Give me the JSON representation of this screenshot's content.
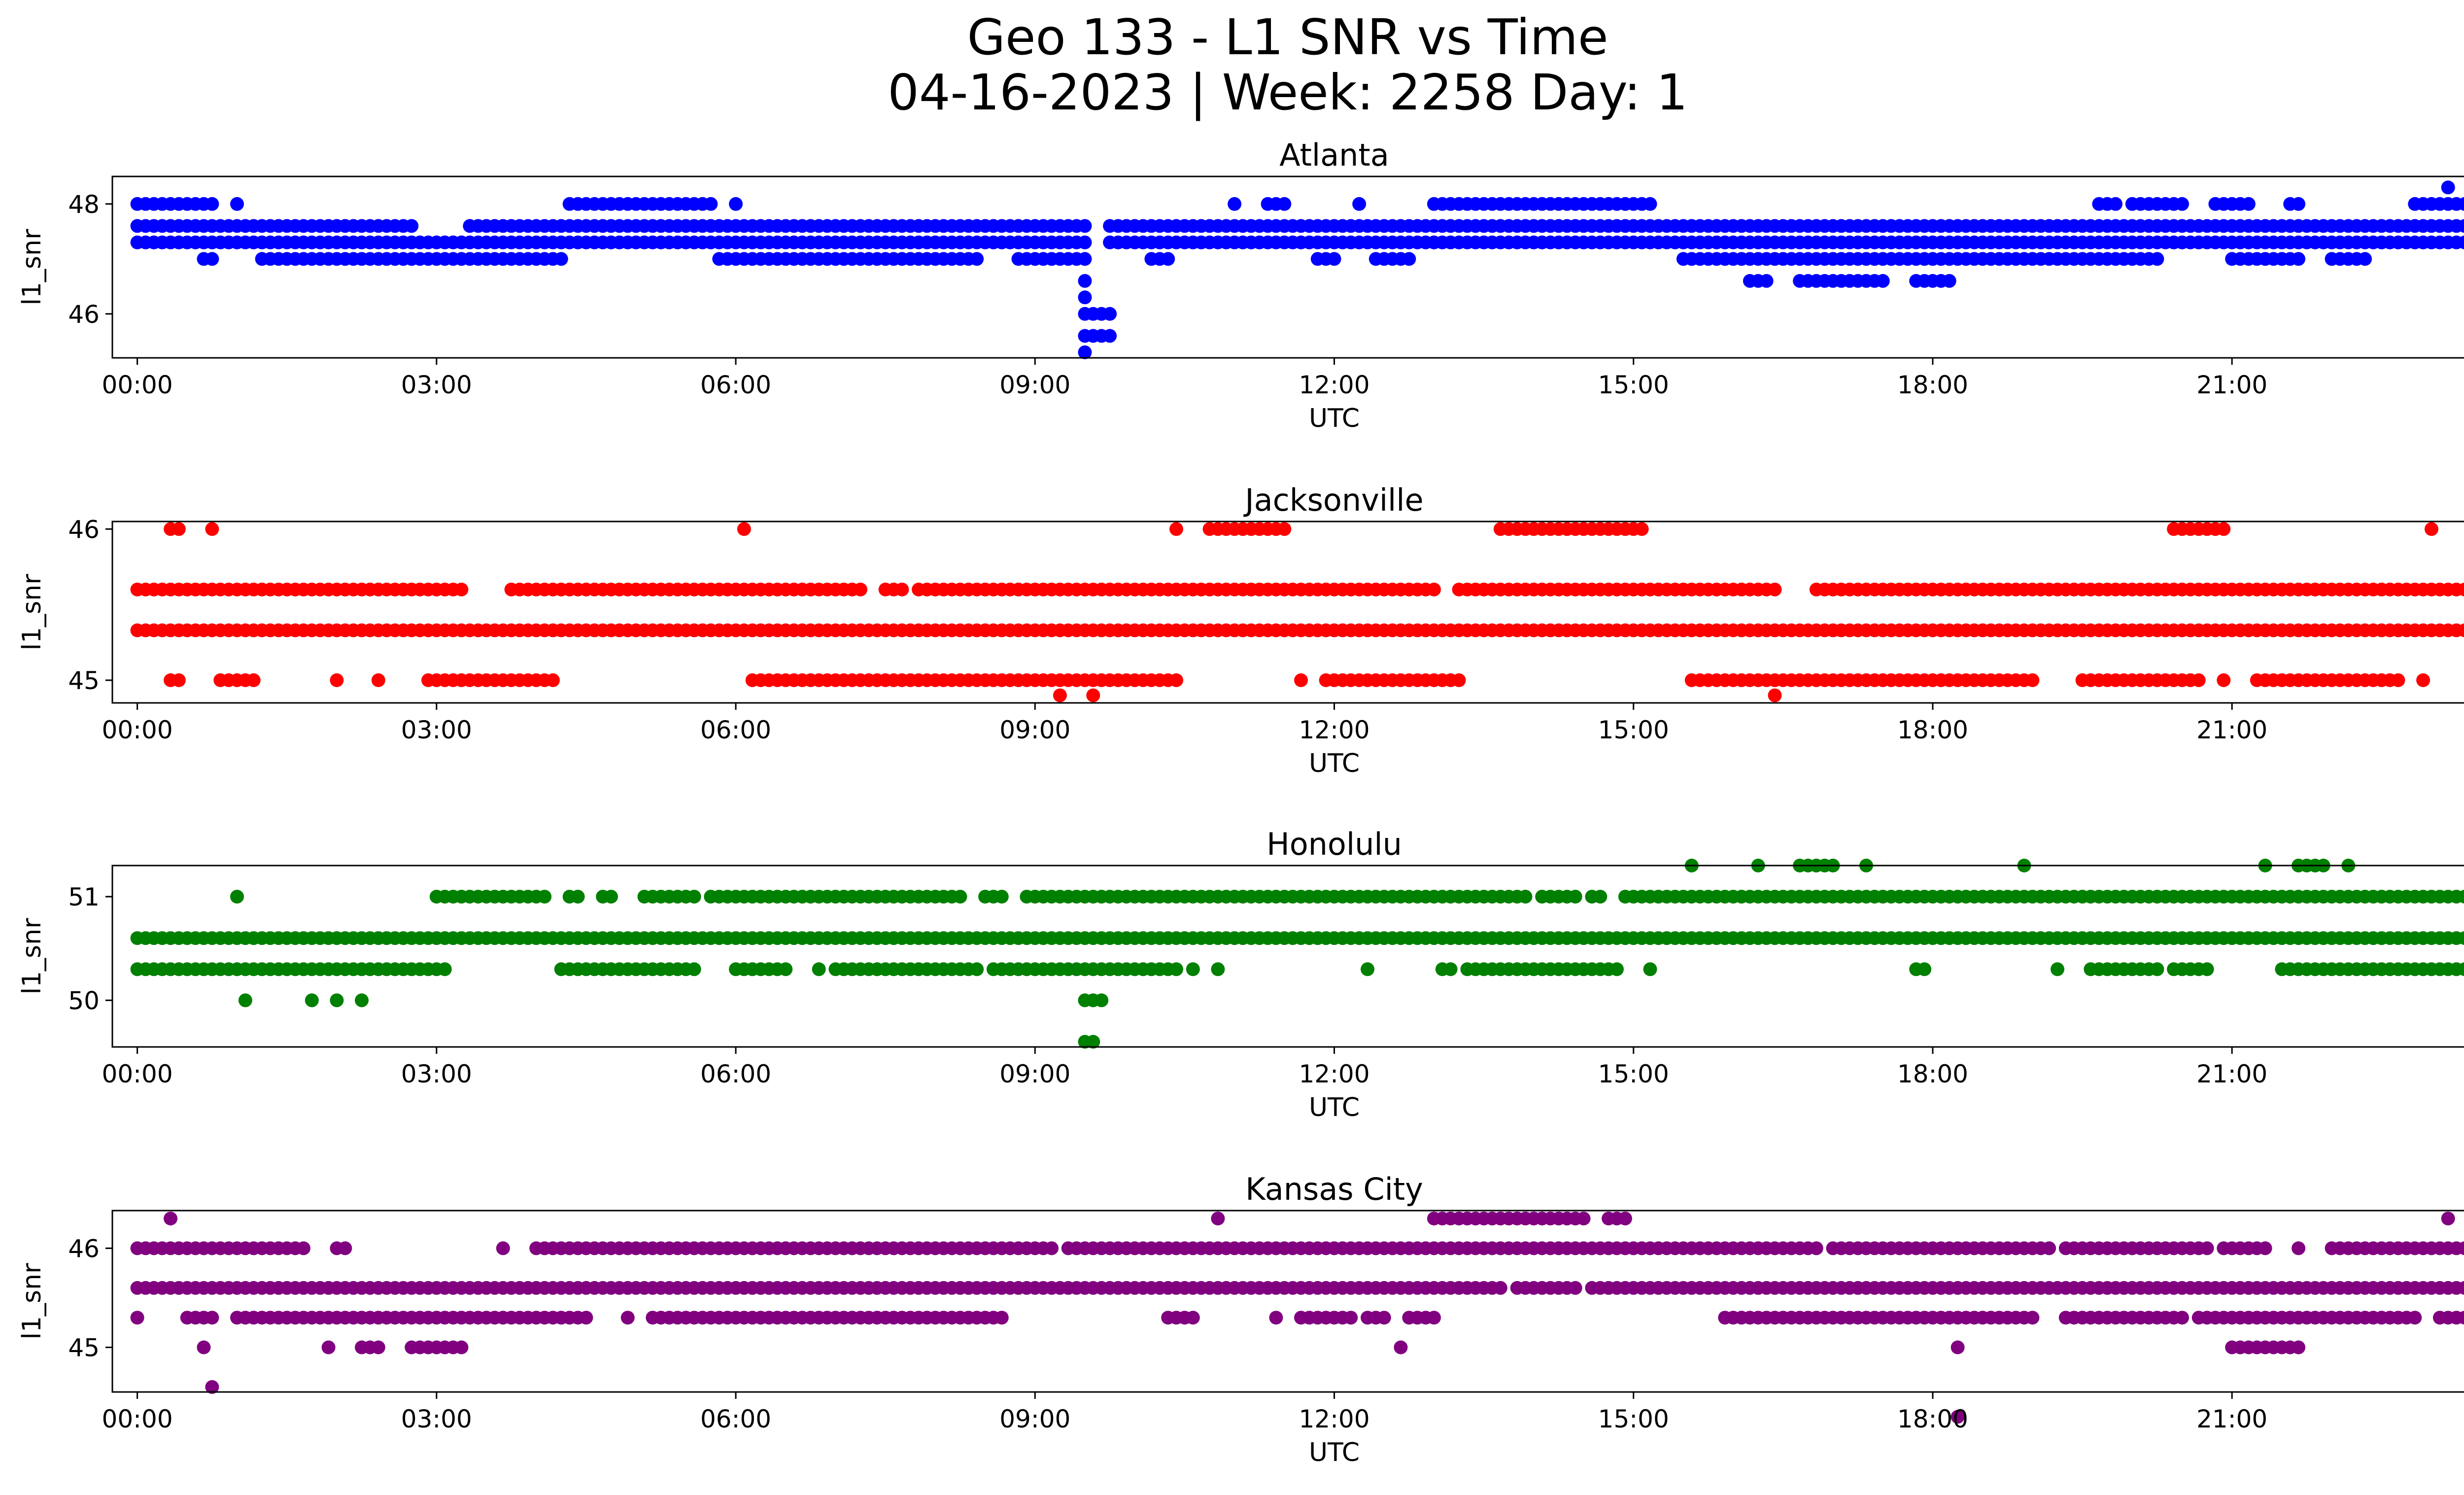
{
  "figure": {
    "title_line1": "Geo 133 - L1 SNR vs Time",
    "title_line2": "04-16-2023 | Week: 2258 Day: 1"
  },
  "chart_data": [
    {
      "type": "scatter",
      "title": "Atlanta",
      "xlabel": "UTC",
      "ylabel": "l1_snr",
      "color": "#0000ff",
      "xlim": [
        "23:45",
        "24:15"
      ],
      "ylim": [
        45.2,
        48.5
      ],
      "yticks": [
        46,
        48
      ],
      "xticks": [
        "00:00",
        "03:00",
        "06:00",
        "09:00",
        "12:00",
        "15:00",
        "18:00",
        "21:00",
        "00:00"
      ],
      "series": [
        {
          "y": 47.6,
          "x_ranges": [
            [
              "00:00",
              "02:45"
            ],
            [
              "03:20",
              "09:30"
            ],
            [
              "09:45",
              "24:00"
            ]
          ]
        },
        {
          "y": 47.3,
          "x_ranges": [
            [
              "00:00",
              "09:30"
            ],
            [
              "09:45",
              "23:45"
            ]
          ]
        },
        {
          "y": 47.0,
          "x_ranges": [
            [
              "00:40",
              "00:45"
            ],
            [
              "01:15",
              "04:15"
            ],
            [
              "05:50",
              "08:25"
            ],
            [
              "08:50",
              "09:30"
            ],
            [
              "10:10",
              "10:20"
            ],
            [
              "11:50",
              "12:00"
            ],
            [
              "12:25",
              "12:45"
            ],
            [
              "15:30",
              "20:15"
            ],
            [
              "21:00",
              "21:40"
            ],
            [
              "22:00",
              "22:20"
            ]
          ]
        },
        {
          "y": 48.0,
          "x_ranges": [
            [
              "00:00",
              "00:45"
            ],
            [
              "01:00",
              "01:00"
            ],
            [
              "04:20",
              "05:45"
            ],
            [
              "06:00",
              "06:00"
            ],
            [
              "11:00",
              "11:00"
            ],
            [
              "11:20",
              "11:30"
            ],
            [
              "12:15",
              "12:15"
            ],
            [
              "13:00",
              "15:10"
            ],
            [
              "19:40",
              "19:50"
            ],
            [
              "20:00",
              "20:30"
            ],
            [
              "20:50",
              "21:10"
            ],
            [
              "21:35",
              "21:40"
            ],
            [
              "22:50",
              "24:00"
            ]
          ]
        },
        {
          "y": 46.6,
          "x_ranges": [
            [
              "09:30",
              "09:30"
            ],
            [
              "16:10",
              "16:20"
            ],
            [
              "16:40",
              "17:30"
            ],
            [
              "17:50",
              "18:10"
            ]
          ]
        },
        {
          "y": 46.3,
          "x_ranges": [
            [
              "09:30",
              "09:30"
            ]
          ]
        },
        {
          "y": 46.0,
          "x_ranges": [
            [
              "09:30",
              "09:45"
            ]
          ]
        },
        {
          "y": 45.6,
          "x_ranges": [
            [
              "09:30",
              "09:45"
            ]
          ]
        },
        {
          "y": 45.3,
          "x_ranges": [
            [
              "09:30",
              "09:30"
            ]
          ]
        },
        {
          "y": 48.3,
          "x_ranges": [
            [
              "23:10",
              "23:10"
            ]
          ]
        }
      ]
    },
    {
      "type": "scatter",
      "title": "Jacksonville",
      "xlabel": "UTC",
      "ylabel": "l1_snr",
      "color": "#ff0000",
      "xlim": [
        "23:45",
        "24:15"
      ],
      "ylim": [
        44.85,
        46.05
      ],
      "yticks": [
        45,
        46
      ],
      "xticks": [
        "00:00",
        "03:00",
        "06:00",
        "09:00",
        "12:00",
        "15:00",
        "18:00",
        "21:00",
        "00:00"
      ],
      "series": [
        {
          "y": 45.6,
          "x_ranges": [
            [
              "00:00",
              "03:15"
            ],
            [
              "03:45",
              "07:15"
            ],
            [
              "07:30",
              "07:40"
            ],
            [
              "07:50",
              "13:00"
            ],
            [
              "13:15",
              "16:25"
            ],
            [
              "16:50",
              "24:00"
            ]
          ]
        },
        {
          "y": 45.33,
          "x_ranges": [
            [
              "00:00",
              "24:00"
            ]
          ]
        },
        {
          "y": 45.0,
          "x_ranges": [
            [
              "00:20",
              "00:25"
            ],
            [
              "00:50",
              "01:10"
            ],
            [
              "02:00",
              "02:00"
            ],
            [
              "02:25",
              "02:25"
            ],
            [
              "02:55",
              "04:10"
            ],
            [
              "06:10",
              "10:25"
            ],
            [
              "11:40",
              "11:40"
            ],
            [
              "11:55",
              "13:15"
            ],
            [
              "15:35",
              "19:00"
            ],
            [
              "19:30",
              "20:40"
            ],
            [
              "20:55",
              "20:55"
            ],
            [
              "21:15",
              "22:40"
            ],
            [
              "22:55",
              "22:55"
            ],
            [
              "23:30",
              "23:30"
            ]
          ]
        },
        {
          "y": 46.0,
          "x_ranges": [
            [
              "00:20",
              "00:25"
            ],
            [
              "00:45",
              "00:45"
            ],
            [
              "06:05",
              "06:05"
            ],
            [
              "10:25",
              "10:25"
            ],
            [
              "10:45",
              "11:30"
            ],
            [
              "13:40",
              "15:05"
            ],
            [
              "20:25",
              "20:55"
            ],
            [
              "23:00",
              "23:00"
            ]
          ]
        },
        {
          "y": 44.9,
          "x_ranges": [
            [
              "09:15",
              "09:15"
            ],
            [
              "09:35",
              "09:35"
            ],
            [
              "16:25",
              "16:25"
            ]
          ]
        }
      ]
    },
    {
      "type": "scatter",
      "title": "Honolulu",
      "xlabel": "UTC",
      "ylabel": "l1_snr",
      "color": "#008000",
      "xlim": [
        "23:45",
        "24:15"
      ],
      "ylim": [
        49.55,
        51.3
      ],
      "yticks": [
        50,
        51
      ],
      "xticks": [
        "00:00",
        "03:00",
        "06:00",
        "09:00",
        "12:00",
        "15:00",
        "18:00",
        "21:00",
        "00:00"
      ],
      "series": [
        {
          "y": 50.6,
          "x_ranges": [
            [
              "00:00",
              "24:00"
            ]
          ]
        },
        {
          "y": 50.3,
          "x_ranges": [
            [
              "00:00",
              "03:05"
            ],
            [
              "04:15",
              "05:35"
            ],
            [
              "06:00",
              "06:30"
            ],
            [
              "06:50",
              "06:50"
            ],
            [
              "07:00",
              "08:25"
            ],
            [
              "08:35",
              "09:40"
            ],
            [
              "09:45",
              "10:25"
            ],
            [
              "10:35",
              "10:35"
            ],
            [
              "10:50",
              "10:50"
            ],
            [
              "12:20",
              "12:20"
            ],
            [
              "13:05",
              "13:10"
            ],
            [
              "13:20",
              "14:50"
            ],
            [
              "15:10",
              "15:10"
            ],
            [
              "17:50",
              "17:55"
            ],
            [
              "19:15",
              "19:15"
            ],
            [
              "19:35",
              "20:15"
            ],
            [
              "20:25",
              "20:45"
            ],
            [
              "21:30",
              "22:10"
            ],
            [
              "22:15",
              "24:00"
            ]
          ]
        },
        {
          "y": 51.0,
          "x_ranges": [
            [
              "01:00",
              "01:00"
            ],
            [
              "03:00",
              "04:05"
            ],
            [
              "04:20",
              "04:25"
            ],
            [
              "04:40",
              "04:45"
            ],
            [
              "05:05",
              "05:35"
            ],
            [
              "05:45",
              "07:45"
            ],
            [
              "07:50",
              "08:15"
            ],
            [
              "08:30",
              "08:40"
            ],
            [
              "08:55",
              "09:45"
            ],
            [
              "09:50",
              "13:55"
            ],
            [
              "14:05",
              "14:25"
            ],
            [
              "14:35",
              "14:40"
            ],
            [
              "14:55",
              "23:30"
            ],
            [
              "23:40",
              "23:40"
            ]
          ]
        },
        {
          "y": 50.0,
          "x_ranges": [
            [
              "01:05",
              "01:05"
            ],
            [
              "01:45",
              "01:45"
            ],
            [
              "02:00",
              "02:00"
            ],
            [
              "02:15",
              "02:15"
            ],
            [
              "09:30",
              "09:40"
            ]
          ]
        },
        {
          "y": 51.3,
          "x_ranges": [
            [
              "15:35",
              "15:35"
            ],
            [
              "16:15",
              "16:15"
            ],
            [
              "16:40",
              "17:00"
            ],
            [
              "17:20",
              "17:20"
            ],
            [
              "18:55",
              "18:55"
            ],
            [
              "21:20",
              "21:20"
            ],
            [
              "21:40",
              "21:55"
            ],
            [
              "22:10",
              "22:10"
            ]
          ]
        },
        {
          "y": 49.6,
          "x_ranges": [
            [
              "09:30",
              "09:35"
            ]
          ]
        }
      ]
    },
    {
      "type": "scatter",
      "title": "Kansas City",
      "xlabel": "UTC",
      "ylabel": "l1_snr",
      "color": "#800080",
      "xlim": [
        "23:45",
        "24:15"
      ],
      "ylim": [
        44.55,
        46.38
      ],
      "yticks": [
        45,
        46
      ],
      "xticks": [
        "00:00",
        "03:00",
        "06:00",
        "09:00",
        "12:00",
        "15:00",
        "18:00",
        "21:00",
        "00:00"
      ],
      "series": [
        {
          "y": 46.0,
          "x_ranges": [
            [
              "00:00",
              "01:40"
            ],
            [
              "02:00",
              "02:05"
            ],
            [
              "03:40",
              "03:40"
            ],
            [
              "04:00",
              "09:10"
            ],
            [
              "09:20",
              "16:50"
            ],
            [
              "17:00",
              "19:10"
            ],
            [
              "19:20",
              "20:45"
            ],
            [
              "20:55",
              "21:20"
            ],
            [
              "21:40",
              "21:40"
            ],
            [
              "22:00",
              "24:00"
            ]
          ]
        },
        {
          "y": 45.6,
          "x_ranges": [
            [
              "00:00",
              "13:40"
            ],
            [
              "13:50",
              "14:25"
            ],
            [
              "14:35",
              "24:00"
            ]
          ]
        },
        {
          "y": 45.3,
          "x_ranges": [
            [
              "00:00",
              "00:00"
            ],
            [
              "00:30",
              "00:45"
            ],
            [
              "01:00",
              "04:30"
            ],
            [
              "04:55",
              "04:55"
            ],
            [
              "05:10",
              "08:25"
            ],
            [
              "08:30",
              "08:40"
            ],
            [
              "10:20",
              "10:35"
            ],
            [
              "11:25",
              "11:25"
            ],
            [
              "11:40",
              "12:10"
            ],
            [
              "12:20",
              "12:30"
            ],
            [
              "12:45",
              "13:00"
            ],
            [
              "15:55",
              "19:00"
            ],
            [
              "19:20",
              "20:30"
            ],
            [
              "20:40",
              "22:50"
            ],
            [
              "23:05",
              "23:30"
            ],
            [
              "23:55",
              "23:55"
            ]
          ]
        },
        {
          "y": 45.0,
          "x_ranges": [
            [
              "00:40",
              "00:40"
            ],
            [
              "01:55",
              "01:55"
            ],
            [
              "02:15",
              "02:25"
            ],
            [
              "02:45",
              "03:15"
            ],
            [
              "12:40",
              "12:40"
            ],
            [
              "18:15",
              "18:15"
            ],
            [
              "21:00",
              "21:40"
            ]
          ]
        },
        {
          "y": 46.3,
          "x_ranges": [
            [
              "00:20",
              "00:20"
            ],
            [
              "10:50",
              "10:50"
            ],
            [
              "13:00",
              "14:30"
            ],
            [
              "14:45",
              "14:55"
            ],
            [
              "23:10",
              "23:10"
            ]
          ]
        },
        {
          "y": 44.6,
          "x_ranges": [
            [
              "00:45",
              "00:45"
            ]
          ]
        },
        {
          "y": 44.3,
          "x_ranges": [
            [
              "18:15",
              "18:15"
            ]
          ]
        }
      ]
    }
  ]
}
